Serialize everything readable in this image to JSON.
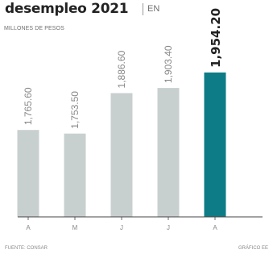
{
  "header": {
    "title": "desempleo 2021",
    "unit_suffix": "EN"
  },
  "footer": {
    "source": "FUENTE: CONSAR",
    "credit": "GRÁFICO EE"
  },
  "colors": {
    "bar": "#c8d0cf",
    "highlight": "#0e7c86",
    "axis": "#444444",
    "label": "#888888",
    "highlight_label": "#222222"
  },
  "chart_data": {
    "type": "bar",
    "title": "desempleo 2021",
    "subtitle": "MILLONES DE PESOS",
    "xlabel": "",
    "ylabel": "",
    "categories": [
      "A",
      "M",
      "J",
      "J",
      "A"
    ],
    "values": [
      1765.6,
      1753.5,
      1886.6,
      1903.4,
      1954.2
    ],
    "data_labels": [
      "1,765.60",
      "1,753.50",
      "1,886.60",
      "1,903.40",
      "1,954.20"
    ],
    "highlight_index": 4,
    "ylim": [
      1480,
      2060
    ],
    "grid": false,
    "legend": "none"
  }
}
